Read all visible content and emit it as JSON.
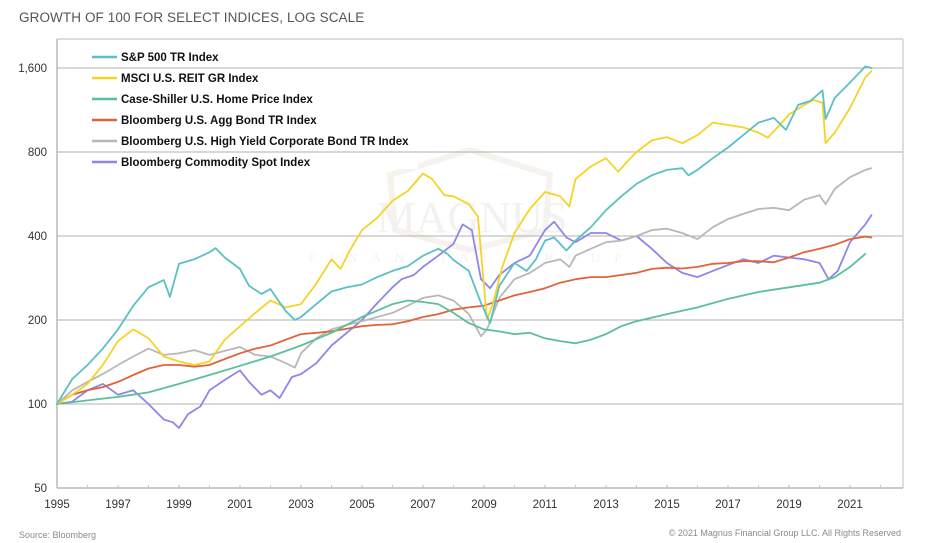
{
  "header": {
    "title": "GROWTH OF 100 FOR SELECT INDICES, LOG SCALE"
  },
  "footer": {
    "source": "Source: Bloomberg",
    "copyright": "© 2021 Magnus Financial Group LLC. All Rights Reserved"
  },
  "watermark": {
    "text": "MAGNUS",
    "subtext": "FINANCIAL GROUP"
  },
  "chart_data": {
    "type": "line",
    "title": "GROWTH OF 100 FOR SELECT INDICES, LOG SCALE",
    "xlabel": "",
    "ylabel": "",
    "yscale": "log2",
    "xlim": [
      1995,
      2022.3
    ],
    "ylim": [
      50,
      2000
    ],
    "grid": true,
    "legend_position": "top-left",
    "x_ticks": [
      1995,
      1997,
      1999,
      2001,
      2003,
      2005,
      2007,
      2009,
      2011,
      2013,
      2015,
      2017,
      2019,
      2021
    ],
    "x_tick_labels": [
      "1995",
      "1997",
      "1999",
      "2001",
      "2003",
      "2005",
      "2007",
      "2009",
      "2011",
      "2013",
      "2015",
      "2017",
      "2019",
      "2021"
    ],
    "y_ticks": [
      50,
      100,
      200,
      400,
      800,
      1600
    ],
    "y_tick_labels": [
      "50",
      "100",
      "200",
      "400",
      "800",
      "1,600"
    ],
    "series": [
      {
        "name": "S&P 500 TR Index",
        "color": "#5bc0c4",
        "x": [
          1995,
          1995.5,
          1996,
          1996.5,
          1997,
          1997.5,
          1998,
          1998.5,
          1998.7,
          1999,
          1999.5,
          2000,
          2000.2,
          2000.5,
          2001,
          2001.3,
          2001.7,
          2002,
          2002.5,
          2002.8,
          2003,
          2003.5,
          2004,
          2004.5,
          2005,
          2005.5,
          2006,
          2006.5,
          2007,
          2007.5,
          2007.8,
          2008,
          2008.5,
          2008.9,
          2009.2,
          2009.5,
          2010,
          2010.4,
          2010.7,
          2011,
          2011.3,
          2011.7,
          2012,
          2012.5,
          2013,
          2013.5,
          2014,
          2014.5,
          2015,
          2015.5,
          2015.7,
          2016,
          2016.5,
          2017,
          2017.5,
          2018,
          2018.5,
          2018.9,
          2019.3,
          2019.7,
          2020.1,
          2020.2,
          2020.5,
          2021,
          2021.5,
          2021.7
        ],
        "values": [
          100,
          123,
          138,
          158,
          185,
          225,
          262,
          278,
          242,
          318,
          330,
          350,
          362,
          335,
          305,
          265,
          248,
          258,
          215,
          200,
          205,
          228,
          253,
          262,
          268,
          285,
          300,
          312,
          340,
          360,
          345,
          328,
          300,
          230,
          195,
          265,
          320,
          300,
          330,
          385,
          395,
          355,
          385,
          430,
          495,
          555,
          615,
          660,
          690,
          700,
          660,
          690,
          760,
          830,
          920,
          1020,
          1060,
          960,
          1180,
          1220,
          1330,
          1050,
          1250,
          1420,
          1620,
          1600
        ]
      },
      {
        "name": "MSCI U.S. REIT GR Index",
        "color": "#f5d327",
        "x": [
          1995,
          1995.5,
          1996,
          1996.5,
          1997,
          1997.5,
          1998,
          1998.5,
          1999,
          1999.5,
          2000,
          2000.5,
          2001,
          2001.5,
          2002,
          2002.5,
          2003,
          2003.5,
          2004,
          2004.3,
          2004.6,
          2005,
          2005.5,
          2006,
          2006.5,
          2007,
          2007.3,
          2007.7,
          2008,
          2008.5,
          2008.8,
          2009.1,
          2009.3,
          2009.6,
          2010,
          2010.5,
          2011,
          2011.5,
          2011.8,
          2012,
          2012.5,
          2013,
          2013.4,
          2013.7,
          2014,
          2014.5,
          2015,
          2015.5,
          2016,
          2016.5,
          2017,
          2017.5,
          2018,
          2018.3,
          2018.7,
          2019,
          2019.5,
          2019.8,
          2020.1,
          2020.2,
          2020.5,
          2021,
          2021.5,
          2021.7
        ],
        "values": [
          100,
          108,
          118,
          138,
          168,
          185,
          172,
          148,
          142,
          138,
          142,
          170,
          190,
          212,
          235,
          222,
          228,
          270,
          330,
          305,
          355,
          420,
          465,
          535,
          580,
          670,
          640,
          560,
          555,
          520,
          470,
          200,
          230,
          310,
          410,
          500,
          575,
          555,
          510,
          640,
          710,
          760,
          680,
          740,
          800,
          880,
          905,
          860,
          920,
          1020,
          1000,
          980,
          940,
          900,
          1000,
          1090,
          1180,
          1230,
          1200,
          860,
          940,
          1150,
          1480,
          1560
        ]
      },
      {
        "name": "Case-Shiller U.S. Home Price Index",
        "color": "#5cbf99",
        "x": [
          1995,
          1996,
          1997,
          1998,
          1999,
          2000,
          2001,
          2002,
          2003,
          2004,
          2005,
          2006,
          2006.5,
          2007,
          2007.5,
          2008,
          2008.5,
          2009,
          2009.5,
          2010,
          2010.5,
          2011,
          2011.5,
          2012,
          2012.5,
          2013,
          2013.5,
          2014,
          2015,
          2016,
          2017,
          2018,
          2019,
          2020,
          2020.5,
          2021,
          2021.5
        ],
        "values": [
          100,
          103,
          106,
          110,
          118,
          127,
          137,
          148,
          162,
          180,
          205,
          228,
          235,
          232,
          228,
          212,
          195,
          185,
          182,
          178,
          180,
          172,
          168,
          165,
          170,
          178,
          190,
          198,
          210,
          222,
          238,
          252,
          262,
          272,
          285,
          310,
          345
        ]
      },
      {
        "name": "Bloomberg U.S. Agg Bond TR Index",
        "color": "#e0643a",
        "x": [
          1995,
          1995.5,
          1996,
          1996.5,
          1997,
          1997.5,
          1998,
          1998.5,
          1999,
          1999.5,
          2000,
          2000.5,
          2001,
          2001.5,
          2002,
          2002.5,
          2003,
          2003.5,
          2004,
          2004.5,
          2005,
          2005.5,
          2006,
          2006.5,
          2007,
          2007.5,
          2008,
          2008.5,
          2009,
          2009.5,
          2010,
          2010.5,
          2011,
          2011.5,
          2012,
          2012.5,
          2013,
          2013.5,
          2014,
          2014.5,
          2015,
          2015.5,
          2016,
          2016.5,
          2017,
          2017.5,
          2018,
          2018.5,
          2019,
          2019.5,
          2020,
          2020.5,
          2021,
          2021.5,
          2021.7
        ],
        "values": [
          100,
          108,
          112,
          115,
          120,
          127,
          134,
          138,
          138,
          136,
          138,
          145,
          152,
          158,
          162,
          170,
          178,
          180,
          182,
          186,
          190,
          192,
          193,
          198,
          205,
          210,
          218,
          222,
          225,
          235,
          245,
          252,
          260,
          272,
          280,
          285,
          285,
          290,
          295,
          305,
          308,
          306,
          310,
          318,
          320,
          325,
          325,
          322,
          335,
          350,
          360,
          372,
          390,
          398,
          395
        ]
      },
      {
        "name": "Bloomberg U.S. High Yield Corporate Bond TR Index",
        "color": "#b8b8b8",
        "x": [
          1995,
          1995.5,
          1996,
          1996.5,
          1997,
          1997.5,
          1998,
          1998.5,
          1999,
          1999.5,
          2000,
          2000.5,
          2001,
          2001.5,
          2002,
          2002.5,
          2002.8,
          2003,
          2003.5,
          2004,
          2004.5,
          2005,
          2005.5,
          2006,
          2006.5,
          2007,
          2007.5,
          2008,
          2008.5,
          2008.9,
          2009.1,
          2009.5,
          2010,
          2010.5,
          2011,
          2011.5,
          2011.8,
          2012,
          2012.5,
          2013,
          2013.5,
          2014,
          2014.5,
          2015,
          2015.5,
          2016,
          2016.5,
          2017,
          2017.5,
          2018,
          2018.5,
          2019,
          2019.5,
          2020,
          2020.2,
          2020.5,
          2021,
          2021.5,
          2021.7
        ],
        "values": [
          100,
          112,
          120,
          128,
          138,
          148,
          158,
          150,
          152,
          156,
          150,
          155,
          160,
          150,
          148,
          140,
          135,
          152,
          172,
          185,
          192,
          198,
          205,
          212,
          225,
          240,
          245,
          235,
          210,
          175,
          185,
          240,
          280,
          295,
          320,
          330,
          310,
          340,
          360,
          380,
          385,
          400,
          420,
          425,
          410,
          390,
          430,
          460,
          480,
          500,
          505,
          495,
          540,
          560,
          520,
          590,
          650,
          690,
          700
        ]
      },
      {
        "name": "Bloomberg Commodity Spot Index",
        "color": "#8e86e8",
        "x": [
          1995,
          1995.5,
          1996,
          1996.5,
          1997,
          1997.5,
          1998,
          1998.5,
          1998.8,
          1999,
          1999.3,
          1999.7,
          2000,
          2000.5,
          2001,
          2001.3,
          2001.7,
          2002,
          2002.3,
          2002.7,
          2003,
          2003.5,
          2004,
          2004.5,
          2005,
          2005.5,
          2006,
          2006.3,
          2006.7,
          2007,
          2007.5,
          2008,
          2008.3,
          2008.6,
          2008.9,
          2009.2,
          2009.5,
          2010,
          2010.5,
          2011,
          2011.3,
          2011.7,
          2012,
          2012.5,
          2013,
          2013.5,
          2014,
          2014.5,
          2015,
          2015.5,
          2016,
          2016.5,
          2017,
          2017.5,
          2018,
          2018.5,
          2019,
          2019.5,
          2020,
          2020.3,
          2020.6,
          2021,
          2021.5,
          2021.7
        ],
        "values": [
          100,
          102,
          112,
          118,
          108,
          112,
          100,
          88,
          86,
          82,
          92,
          98,
          112,
          122,
          132,
          120,
          108,
          112,
          105,
          125,
          128,
          140,
          162,
          180,
          200,
          230,
          262,
          280,
          290,
          310,
          340,
          375,
          440,
          420,
          280,
          260,
          290,
          320,
          340,
          420,
          450,
          395,
          380,
          410,
          410,
          385,
          400,
          360,
          320,
          295,
          285,
          300,
          315,
          330,
          320,
          340,
          335,
          330,
          320,
          280,
          300,
          380,
          440,
          475
        ]
      }
    ]
  }
}
